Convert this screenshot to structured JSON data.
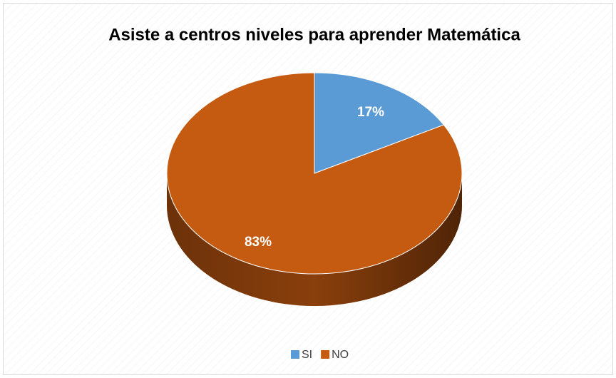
{
  "chart_data": {
    "type": "pie",
    "title": "Asiste a centros niveles para aprender Matemática",
    "categories": [
      "SI",
      "NO"
    ],
    "values": [
      17,
      83
    ],
    "value_labels": [
      "17%",
      "83%"
    ],
    "colors": [
      "#5b9bd5",
      "#c55a11"
    ],
    "legend": "bottom"
  }
}
